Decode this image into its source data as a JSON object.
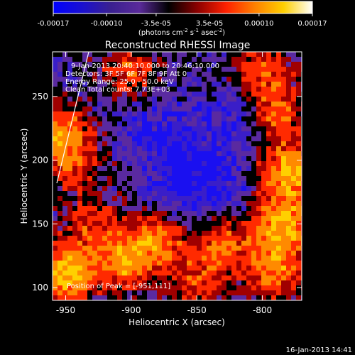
{
  "chart_data": {
    "type": "heatmap",
    "title": "Reconstructed RHESSI Image",
    "xlabel": "Heliocentric X (arcsec)",
    "ylabel": "Heliocentric Y (arcsec)",
    "xlim": [
      -960,
      -770
    ],
    "ylim": [
      90,
      285
    ],
    "x_ticks": [
      -950,
      -900,
      -850,
      -800
    ],
    "x_tick_labels": [
      "-950",
      "-900",
      "-850",
      "-800"
    ],
    "y_ticks": [
      100,
      150,
      200,
      250
    ],
    "y_tick_labels": [
      "100",
      "150",
      "200",
      "250"
    ],
    "colorbar": {
      "range": [
        -0.00017,
        0.00017
      ],
      "ticks": [
        -0.00017,
        -0.0001,
        -3.5e-05,
        3.5e-05,
        0.0001,
        0.00017
      ],
      "tick_labels": [
        "-0.00017",
        "-0.00010",
        "-3.5e-05",
        "3.5e-05",
        "0.00010",
        "0.00017"
      ],
      "units_label": "(photons cm",
      "units_exp1": "-2",
      "units_mid": " s",
      "units_exp2": "-1",
      "units_mid2": " asec",
      "units_exp3": "-2",
      "units_end": ")",
      "colors": [
        "#0000ff",
        "#1a10d0",
        "#3a2090",
        "#5a2a9a",
        "#000000",
        "#8a0000",
        "#ff2000",
        "#ff8000",
        "#ffd000",
        "#ffffff"
      ]
    },
    "annotations": [
      "9-Jan-2013 20:40:10.000 to 20:46:10.000",
      "Detectors: 3F 5F 6F 7F 8F 9F Att 0",
      "Energy Range: 25.0 - 50.0 keV",
      "Clean    Total counts: 7.73E+03"
    ],
    "peak_label": "Position of Peak = [-951,111]",
    "hot_regions": [
      {
        "x": -950,
        "y": 111,
        "level": 1.0
      },
      {
        "x": -955,
        "y": 222,
        "level": 0.7
      },
      {
        "x": -945,
        "y": 198,
        "level": 0.5
      },
      {
        "x": -780,
        "y": 190,
        "level": 0.9
      },
      {
        "x": -785,
        "y": 150,
        "level": 0.9
      },
      {
        "x": -790,
        "y": 115,
        "level": 0.75
      },
      {
        "x": -880,
        "y": 140,
        "level": 0.7
      },
      {
        "x": -905,
        "y": 120,
        "level": 0.8
      },
      {
        "x": -830,
        "y": 135,
        "level": 0.6
      },
      {
        "x": -900,
        "y": 270,
        "level": 0.5
      },
      {
        "x": -800,
        "y": 270,
        "level": 0.55
      },
      {
        "x": -790,
        "y": 235,
        "level": 0.6
      },
      {
        "x": -930,
        "y": 150,
        "level": 0.45
      },
      {
        "x": -850,
        "y": 105,
        "level": 0.5
      }
    ],
    "cold_regions": [
      {
        "x": -880,
        "y": 220,
        "level": 0.8
      },
      {
        "x": -850,
        "y": 195,
        "level": 0.7
      },
      {
        "x": -820,
        "y": 230,
        "level": 0.7
      },
      {
        "x": -870,
        "y": 165,
        "level": 0.6
      },
      {
        "x": -830,
        "y": 175,
        "level": 0.55
      }
    ]
  },
  "footer": {
    "timestamp": "16-Jan-2013 14:41"
  }
}
